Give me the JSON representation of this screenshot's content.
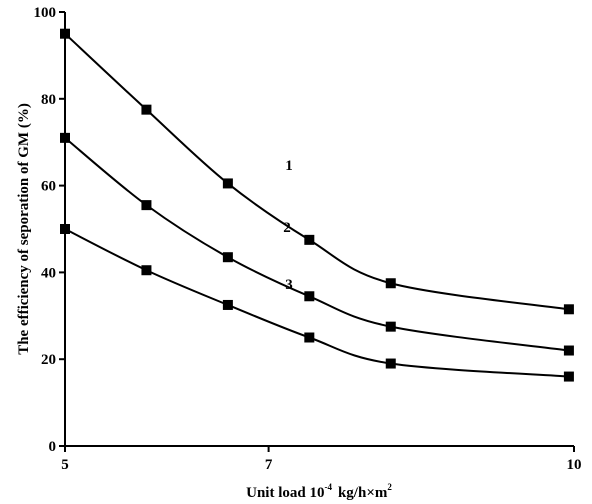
{
  "chart_data": {
    "type": "line",
    "title": "",
    "xlabel": "Unit load 10",
    "xlabel_exp": "-4",
    "xlabel_units": "kg/h×m",
    "xlabel_units_exp": "2",
    "ylabel": "The efficiency of seporation of GM (%)",
    "xlim": [
      5,
      10
    ],
    "ylim": [
      0,
      100
    ],
    "xticks": [
      5,
      7,
      10
    ],
    "yticks": [
      0,
      20,
      40,
      60,
      80,
      100
    ],
    "grid": false,
    "legend": "none",
    "series": [
      {
        "label": "1",
        "x": [
          5,
          5.8,
          6.6,
          7.4,
          8.2,
          9.95
        ],
        "y": [
          95,
          77.5,
          60.5,
          47.5,
          37.5,
          31.5
        ]
      },
      {
        "label": "2",
        "x": [
          5,
          5.8,
          6.6,
          7.4,
          8.2,
          9.95
        ],
        "y": [
          71,
          55.5,
          43.5,
          34.5,
          27.5,
          22
        ]
      },
      {
        "label": "3",
        "x": [
          5,
          5.8,
          6.6,
          7.4,
          8.2,
          9.95
        ],
        "y": [
          50,
          40.5,
          32.5,
          25,
          19,
          16
        ]
      }
    ]
  }
}
